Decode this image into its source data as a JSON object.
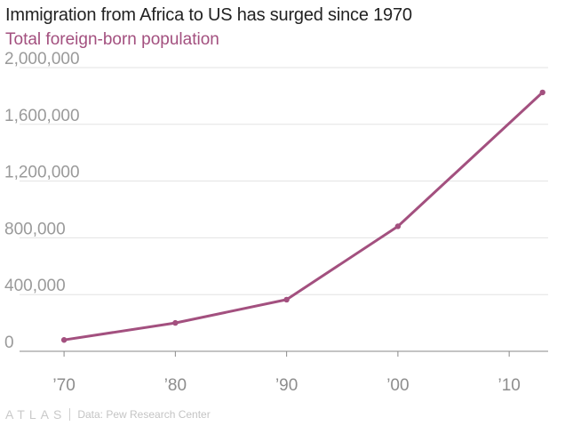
{
  "chart_data": {
    "type": "line",
    "title": "Immigration from Africa to US has surged since 1970",
    "subtitle": "Total foreign-born population",
    "x": [
      1970,
      1980,
      1990,
      2000,
      2013
    ],
    "x_tick_values": [
      1970,
      1980,
      1990,
      2000,
      2010
    ],
    "x_tick_labels": [
      "’70",
      "’80",
      "’90",
      "’00",
      "’10"
    ],
    "xlim": [
      1966,
      2013.5
    ],
    "y_tick_values": [
      0,
      400000,
      800000,
      1200000,
      1600000,
      2000000
    ],
    "y_tick_labels": [
      "0",
      "400,000",
      "800,000",
      "1,200,000",
      "1,600,000",
      "2,000,000"
    ],
    "ylim": [
      0,
      2000000
    ],
    "series": [
      {
        "values": [
          80000,
          200000,
          364000,
          881000,
          1825000
        ],
        "color": "#a3507f"
      }
    ],
    "grid": true,
    "xlabel": "",
    "ylabel": ""
  },
  "footer": {
    "brand": "ATLAS",
    "source": "Data: Pew Research Center"
  }
}
